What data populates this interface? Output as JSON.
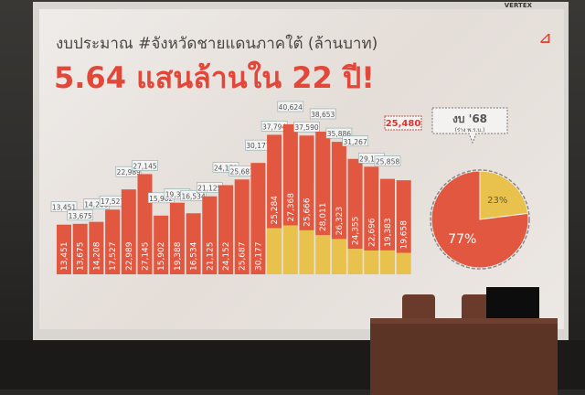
{
  "slide": {
    "title": "งบประมาณ #จังหวัดชายแดนภาคใต้ (ล้านบาท)",
    "headline": "5.64 แสนล้านใน 22 ปี!",
    "logo": "7"
  },
  "projector_brand": "VERTEX",
  "colors": {
    "red": "#e2573f",
    "yellow": "#e9c24e",
    "headline": "#e2483a"
  },
  "chart_data": [
    {
      "type": "bar",
      "stacked": true,
      "totals": [
        13451,
        13675,
        14208,
        17527,
        22989,
        27145,
        15902,
        19388,
        16534,
        21125,
        24152,
        25687,
        30177,
        37794,
        40624,
        37590,
        38653,
        35886,
        31267,
        29147,
        25858,
        25480
      ],
      "series": [
        {
          "color": "#e2573f",
          "values": [
            13451,
            13675,
            14208,
            17527,
            22989,
            27145,
            15902,
            19388,
            16534,
            21125,
            24152,
            25687,
            30177,
            25284,
            27368,
            25666,
            28011,
            26323,
            24355,
            22696,
            19383,
            19658
          ]
        },
        {
          "color": "#e9c24e",
          "values": [
            0,
            0,
            0,
            0,
            0,
            0,
            0,
            0,
            0,
            0,
            0,
            0,
            0,
            12510,
            13256,
            11924,
            10642,
            9563,
            6912,
            6451,
            6475,
            5822
          ]
        }
      ],
      "highlight_label": "25,480"
    },
    {
      "type": "pie",
      "title": "งบ '68",
      "subtitle": "(ร่าง พ.ร.บ.)",
      "slices": [
        {
          "label": "77%",
          "value": 77,
          "color": "#e2573f"
        },
        {
          "label": "23%",
          "value": 23,
          "color": "#e9c24e"
        }
      ]
    }
  ]
}
